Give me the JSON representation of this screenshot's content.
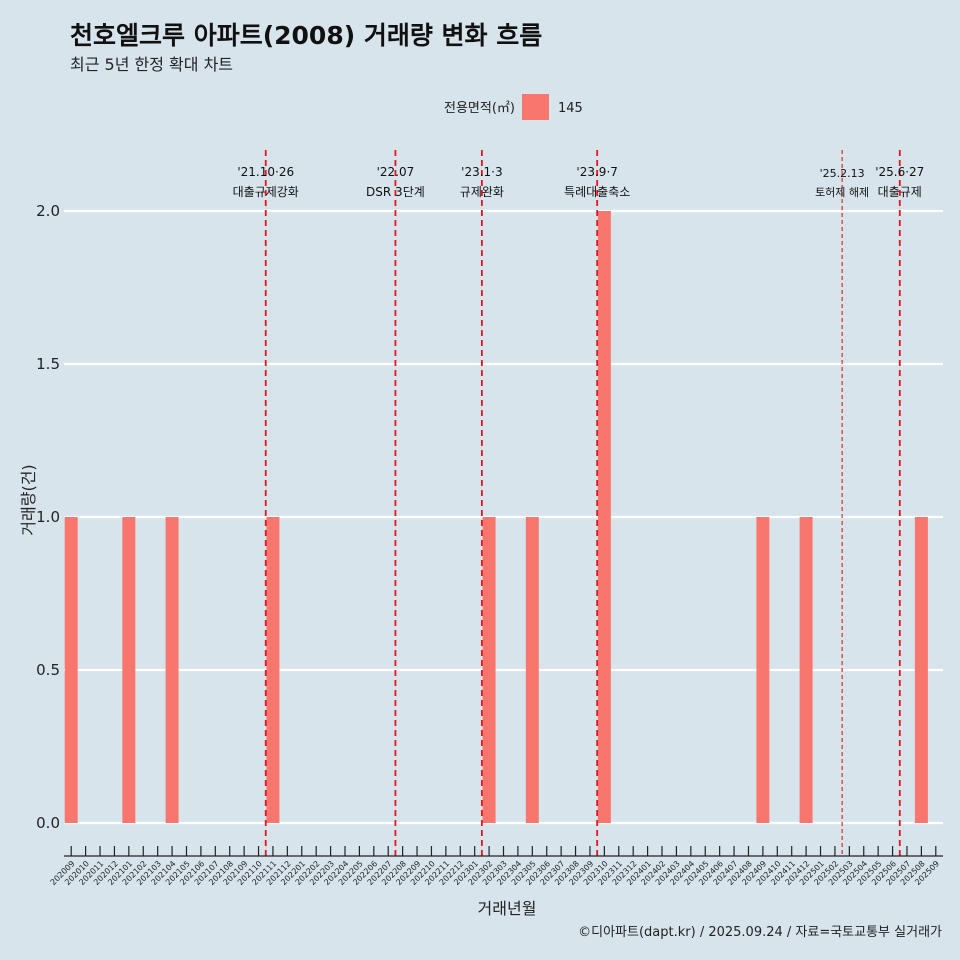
{
  "chart_data": {
    "type": "bar",
    "title": "천호엘크루 아파트(2008) 거래량 변화 흐름",
    "subtitle": "최근 5년 한정 확대 차트",
    "xlabel": "거래년월",
    "ylabel": "거래량(건)",
    "ylim": [
      -0.08,
      2.2
    ],
    "yticks": [
      "0.0",
      "0.5",
      "1.0",
      "1.5",
      "2.0"
    ],
    "legend": {
      "title": "전용면적(㎡)",
      "entries": [
        {
          "label": "145",
          "color": "#f8766d"
        }
      ],
      "position": "top"
    },
    "caption": "©디아파트(dapt.kr) / 2025.09.24 / 자료=국토교통부 실거래가",
    "categories": [
      "202009",
      "202010",
      "202011",
      "202012",
      "202101",
      "202102",
      "202103",
      "202104",
      "202105",
      "202106",
      "202107",
      "202108",
      "202109",
      "202110",
      "202111",
      "202112",
      "202201",
      "202202",
      "202203",
      "202204",
      "202205",
      "202206",
      "202207",
      "202208",
      "202209",
      "202210",
      "202211",
      "202212",
      "202301",
      "202302",
      "202303",
      "202304",
      "202305",
      "202306",
      "202307",
      "202308",
      "202309",
      "202310",
      "202311",
      "202312",
      "202401",
      "202402",
      "202403",
      "202404",
      "202405",
      "202406",
      "202407",
      "202408",
      "202409",
      "202410",
      "202411",
      "202412",
      "202501",
      "202502",
      "202503",
      "202504",
      "202505",
      "202506",
      "202507",
      "202508",
      "202509"
    ],
    "series": [
      {
        "name": "145",
        "color": "#f8766d",
        "values": [
          1,
          0,
          0,
          0,
          1,
          0,
          0,
          1,
          0,
          0,
          0,
          0,
          0,
          0,
          1,
          0,
          0,
          0,
          0,
          0,
          0,
          0,
          0,
          0,
          0,
          0,
          0,
          0,
          0,
          1,
          0,
          0,
          1,
          0,
          0,
          0,
          0,
          2,
          0,
          0,
          0,
          0,
          0,
          0,
          0,
          0,
          0,
          0,
          1,
          0,
          0,
          1,
          0,
          0,
          0,
          0,
          0,
          0,
          0,
          1,
          0
        ]
      }
    ],
    "annotations": [
      {
        "line1": "'21.10·26",
        "line2": "대출규제강화",
        "pos": 13.5,
        "style": "thick"
      },
      {
        "line1": "'22.07",
        "line2": "DSR 3단계",
        "pos": 22.5,
        "style": "thick"
      },
      {
        "line1": "'23.1·3",
        "line2": "규제완화",
        "pos": 28.5,
        "style": "thick"
      },
      {
        "line1": "'23.9·7",
        "line2": "특례대출축소",
        "pos": 36.5,
        "style": "thick"
      },
      {
        "line1": "'25.2.13",
        "line2": "토허제 해제",
        "pos": 53.5,
        "style": "thin"
      },
      {
        "line1": "'25.6·27",
        "line2": "대출규제",
        "pos": 57.5,
        "style": "thick"
      }
    ],
    "colors": {
      "background": "#d7e4ec",
      "grid": "#ffffff",
      "vline": "#e8141b"
    }
  }
}
